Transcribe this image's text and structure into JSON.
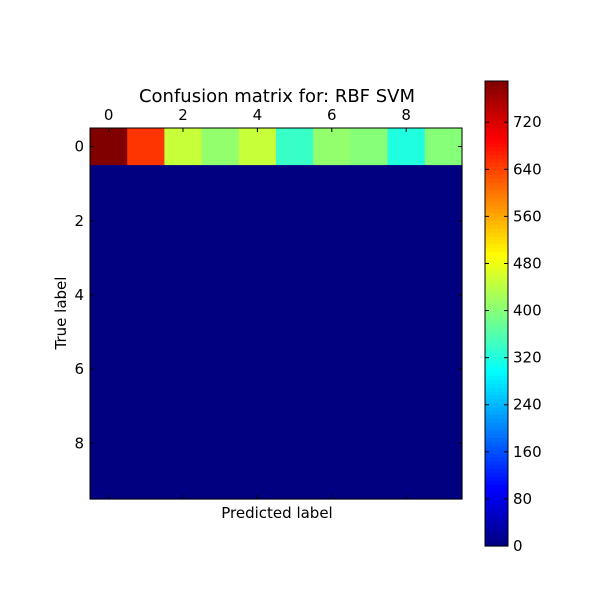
{
  "chart_data": {
    "type": "heatmap",
    "title": "Confusion matrix for: RBF SVM",
    "xlabel": "Predicted label",
    "ylabel": "True label",
    "x_tick_labels": [
      "0",
      "2",
      "4",
      "6",
      "8"
    ],
    "y_tick_labels": [
      "0",
      "2",
      "4",
      "6",
      "8"
    ],
    "rows": 10,
    "cols": 10,
    "matrix": [
      [
        790,
        650,
        450,
        410,
        450,
        340,
        410,
        400,
        320,
        400
      ],
      [
        0,
        0,
        0,
        0,
        0,
        0,
        0,
        0,
        0,
        0
      ],
      [
        0,
        0,
        0,
        0,
        0,
        0,
        0,
        0,
        0,
        0
      ],
      [
        0,
        0,
        0,
        0,
        0,
        0,
        0,
        0,
        0,
        0
      ],
      [
        0,
        0,
        0,
        0,
        0,
        0,
        0,
        0,
        0,
        0
      ],
      [
        0,
        0,
        0,
        0,
        0,
        0,
        0,
        0,
        0,
        0
      ],
      [
        0,
        0,
        0,
        0,
        0,
        0,
        0,
        0,
        0,
        0
      ],
      [
        0,
        0,
        0,
        0,
        0,
        0,
        0,
        0,
        0,
        0
      ],
      [
        0,
        0,
        0,
        0,
        0,
        0,
        0,
        0,
        0,
        0
      ],
      [
        0,
        0,
        0,
        0,
        0,
        0,
        0,
        0,
        0,
        0
      ]
    ],
    "colormap": "jet",
    "colorbar_range": [
      0,
      790
    ],
    "colorbar_ticks": [
      "0",
      "80",
      "160",
      "240",
      "320",
      "400",
      "480",
      "560",
      "640",
      "720"
    ],
    "grid": false
  }
}
